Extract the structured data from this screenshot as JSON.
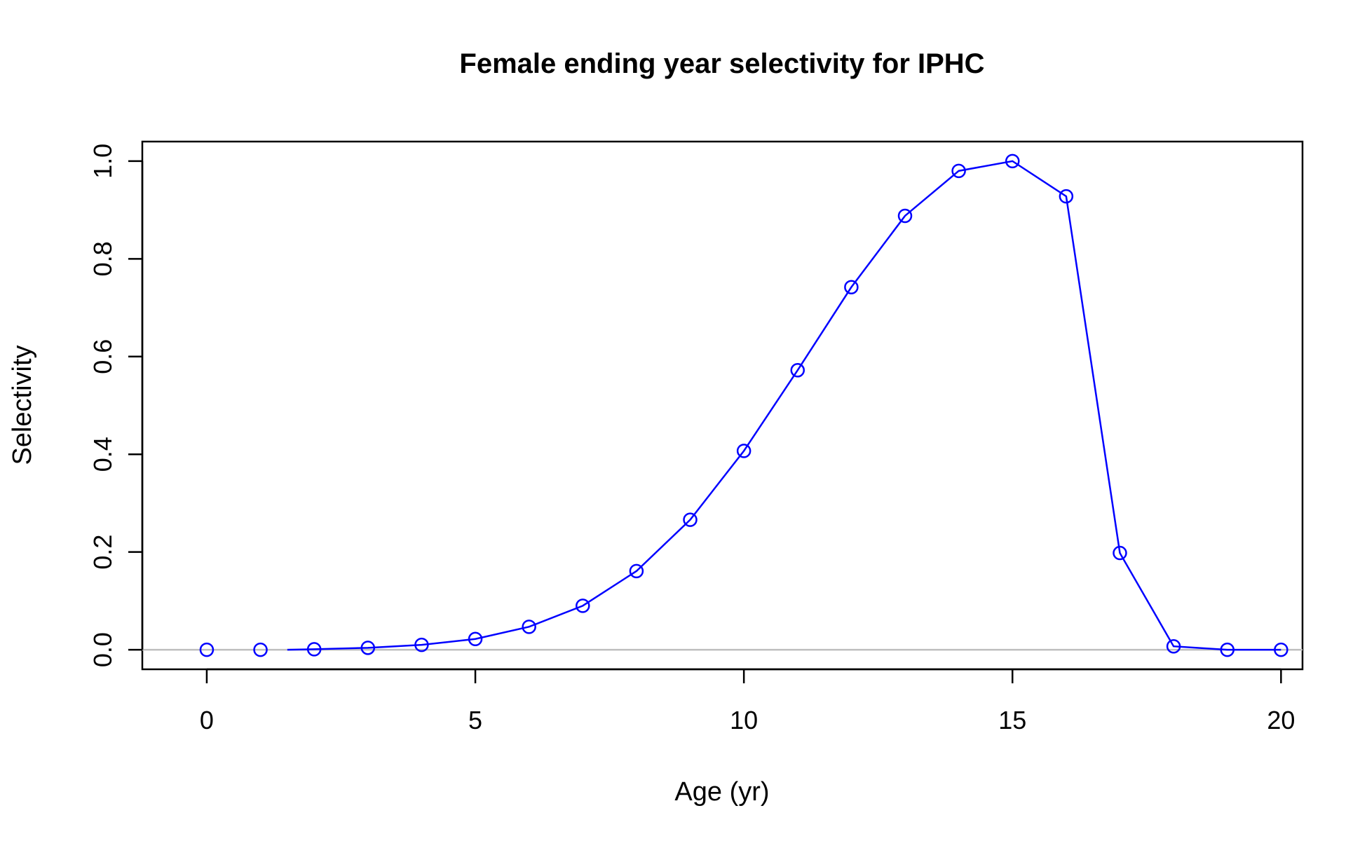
{
  "chart_data": {
    "type": "line",
    "title": "Female ending year selectivity for IPHC",
    "xlabel": "Age (yr)",
    "ylabel": "Selectivity",
    "xlim": [
      -1.2,
      20.4
    ],
    "ylim": [
      -0.04,
      1.04
    ],
    "x_ticks": [
      0,
      5,
      10,
      15,
      20
    ],
    "y_ticks": [
      0.0,
      0.2,
      0.4,
      0.6,
      0.8,
      1.0
    ],
    "x_tick_labels": [
      "0",
      "5",
      "10",
      "15",
      "20"
    ],
    "y_tick_labels": [
      "0.0",
      "0.2",
      "0.4",
      "0.6",
      "0.8",
      "1.0"
    ],
    "grid": false,
    "reference_line": {
      "y": 0,
      "color": "#bebebe"
    },
    "colors": {
      "series": "#0000ff",
      "axis": "#000000"
    },
    "series": [
      {
        "x": [
          0,
          1,
          2,
          3,
          4,
          5,
          6,
          7,
          8,
          9,
          10,
          11,
          12,
          13,
          14,
          15,
          16,
          17,
          18,
          19,
          20
        ],
        "values": [
          0.0,
          0.0,
          0.001,
          0.004,
          0.01,
          0.022,
          0.047,
          0.09,
          0.161,
          0.266,
          0.407,
          0.572,
          0.742,
          0.888,
          0.98,
          1.0,
          0.928,
          0.198,
          0.007,
          0.0,
          0.0
        ],
        "line_start_x": 1.5
      }
    ]
  }
}
